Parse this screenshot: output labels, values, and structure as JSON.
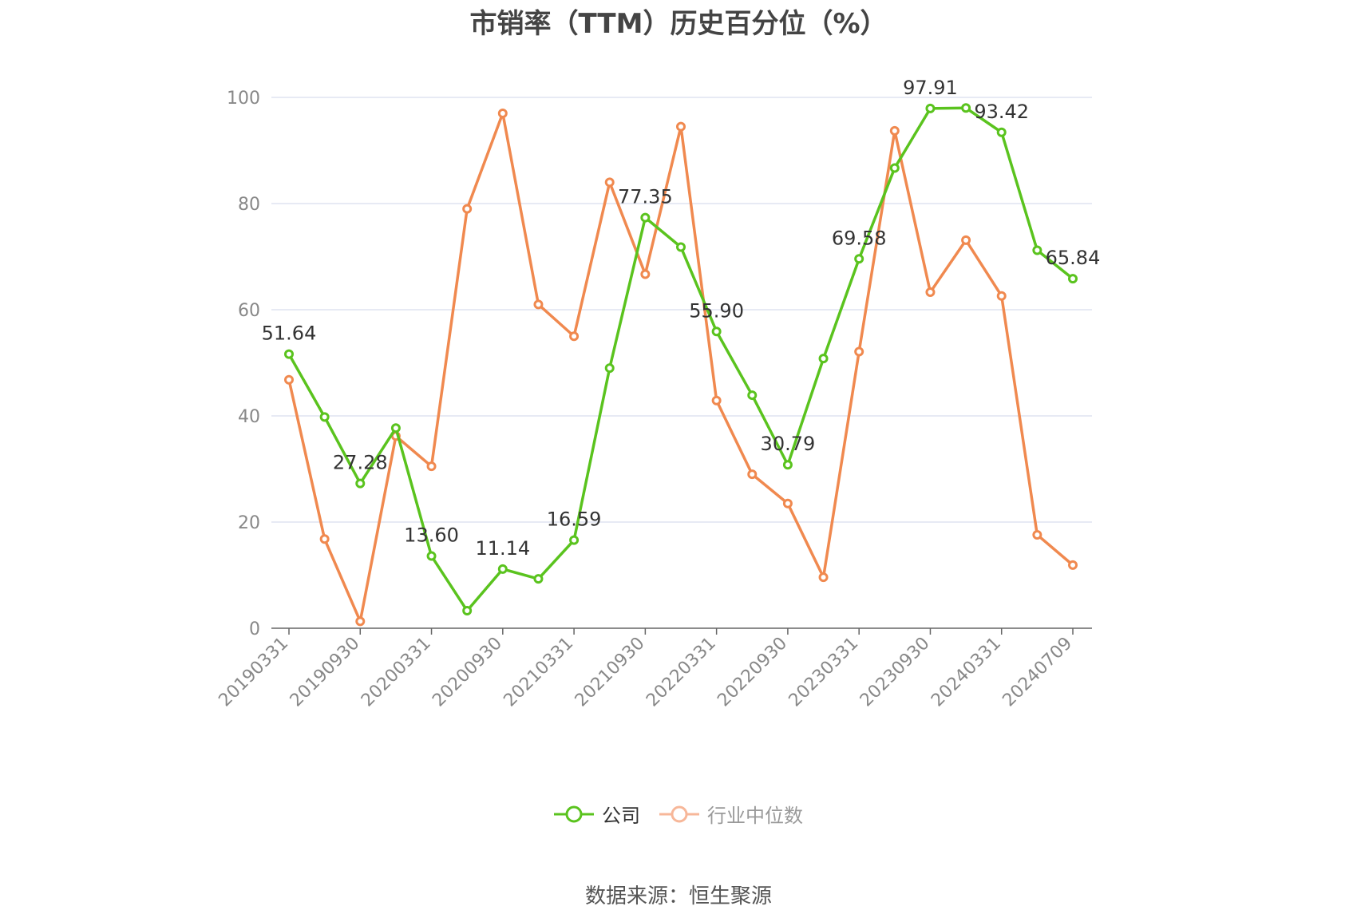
{
  "chart_data": {
    "type": "line",
    "title": "市销率（TTM）历史百分位（%）",
    "ylim": [
      0,
      100
    ],
    "yticks": [
      0,
      20,
      40,
      60,
      80,
      100
    ],
    "grid": true,
    "legend_position": "bottom",
    "x": [
      "20190331",
      "20190630",
      "20190930",
      "20191231",
      "20200331",
      "20200630",
      "20200930",
      "20201231",
      "20210331",
      "20210630",
      "20210930",
      "20211231",
      "20220331",
      "20220630",
      "20220930",
      "20221231",
      "20230331",
      "20230630",
      "20230930",
      "20231231",
      "20240331",
      "20240630",
      "20240709"
    ],
    "xticks": [
      "20190331",
      "20190930",
      "20200331",
      "20200930",
      "20210331",
      "20210930",
      "20220331",
      "20220930",
      "20230331",
      "20230930",
      "20240331",
      "20240709"
    ],
    "series": [
      {
        "name": "公司",
        "color": "#5ac31e",
        "values": [
          51.64,
          39.8,
          27.28,
          37.7,
          13.6,
          3.3,
          11.14,
          9.3,
          16.59,
          49.0,
          77.35,
          71.8,
          55.9,
          43.9,
          30.79,
          50.8,
          69.58,
          86.7,
          97.91,
          98.0,
          93.42,
          71.2,
          65.84
        ],
        "data_labels": [
          "51.64",
          "",
          "27.28",
          "",
          "13.60",
          "",
          "11.14",
          "",
          "16.59",
          "",
          "77.35",
          "",
          "55.90",
          "",
          "30.79",
          "",
          "69.58",
          "",
          "97.91",
          "",
          "93.42",
          "",
          "65.84"
        ]
      },
      {
        "name": "行业中位数",
        "color": "#f0894f",
        "values": [
          46.8,
          16.8,
          1.3,
          36.2,
          30.5,
          79.0,
          97.0,
          61.0,
          55.0,
          84.0,
          66.7,
          94.5,
          42.9,
          29.0,
          23.5,
          9.6,
          52.1,
          93.7,
          63.3,
          73.1,
          62.6,
          17.6,
          11.9
        ],
        "data_labels": []
      }
    ]
  },
  "legend": {
    "company": "公司",
    "industry": "行业中位数"
  },
  "source": "数据来源：恒生聚源"
}
